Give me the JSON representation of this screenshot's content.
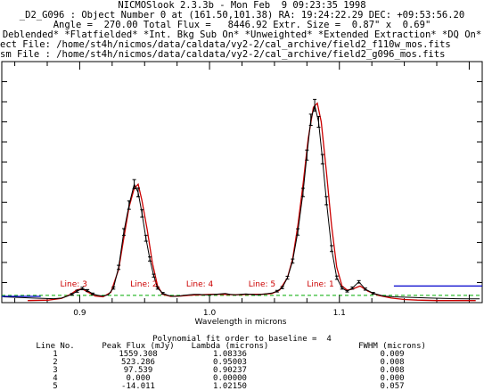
{
  "header": {
    "line1": "NICMOSlook 2.3.3b - Mon Feb  9 09:23:35 1998",
    "line2": "_D2_G096 : Object Number 0 at (161.50,101.38) RA: 19:24:22.29 DEC: +09:53:56.20",
    "line3": "Angle =  270.00 Total Flux =   8446.92 Extr. Size =  0.87\" x  0.69\"",
    "line4": "Deblended* *Flatfielded* *Int. Bkg Sub On* *Unweighted* *Extended Extraction* *DQ On*",
    "line5": "ect File: /home/st4h/nicmos/data/caldata/vy2-2/cal_archive/field2_f110w_mos.fits",
    "line6": "sm File : /home/st4h/nicmos/data/caldata/vy2-2/cal_archive/field2_g096_mos.fits"
  },
  "colors": {
    "spectrum": "#000000",
    "fit": "#cc0000",
    "baseline": "#00aa00",
    "marker": "#0000cc",
    "line_label": "#cc0000"
  },
  "chart_data": {
    "type": "line",
    "xlabel": "Wavelength in microns",
    "xlim": [
      0.84,
      1.21
    ],
    "ylim": [
      -10,
      1150
    ],
    "xticks": [
      0.9,
      1.0,
      1.1
    ],
    "xtick_labels": [
      "0.9",
      "1.0",
      "1.1"
    ],
    "series": [
      {
        "x": [
          0.841,
          0.848,
          0.856,
          0.864,
          0.872,
          0.88,
          0.886,
          0.89,
          0.894,
          0.898,
          0.902,
          0.906,
          0.91,
          0.914,
          0.918,
          0.922,
          0.926,
          0.93,
          0.934,
          0.938,
          0.942,
          0.945,
          0.948,
          0.951,
          0.954,
          0.957,
          0.96,
          0.964,
          0.968,
          0.972,
          0.976,
          0.98,
          0.984,
          0.988,
          0.992,
          0.996,
          1.0,
          1.004,
          1.008,
          1.012,
          1.016,
          1.02,
          1.024,
          1.028,
          1.032,
          1.036,
          1.04,
          1.044,
          1.048,
          1.052,
          1.056,
          1.06,
          1.064,
          1.068,
          1.072,
          1.075,
          1.078,
          1.081,
          1.084,
          1.087,
          1.09,
          1.094,
          1.098,
          1.102,
          1.106,
          1.11,
          1.115,
          1.12,
          1.126,
          1.134,
          1.142,
          1.15,
          1.16,
          1.17,
          1.18,
          1.19,
          1.2,
          1.208
        ],
        "y": [
          18,
          16,
          14,
          12,
          10,
          9,
          12,
          20,
          30,
          45,
          58,
          48,
          32,
          25,
          22,
          28,
          60,
          160,
          330,
          460,
          560,
          520,
          420,
          300,
          200,
          120,
          60,
          35,
          25,
          20,
          22,
          25,
          28,
          30,
          30,
          28,
          28,
          30,
          32,
          34,
          30,
          28,
          30,
          32,
          30,
          28,
          30,
          33,
          36,
          45,
          62,
          110,
          190,
          330,
          520,
          700,
          870,
          940,
          860,
          680,
          480,
          250,
          110,
          60,
          45,
          60,
          90,
          55,
          35,
          22,
          18,
          16,
          14,
          12,
          10,
          9,
          8,
          8
        ],
        "errors": [
          3,
          3,
          3,
          3,
          3,
          3,
          3,
          3,
          4,
          5,
          6,
          5,
          4,
          3,
          3,
          3,
          5,
          10,
          16,
          20,
          22,
          21,
          18,
          14,
          10,
          7,
          5,
          4,
          3,
          3,
          3,
          3,
          3,
          3,
          3,
          3,
          3,
          3,
          3,
          3,
          3,
          3,
          3,
          3,
          3,
          3,
          3,
          3,
          3,
          4,
          5,
          7,
          10,
          15,
          20,
          24,
          27,
          28,
          26,
          23,
          20,
          14,
          8,
          5,
          4,
          5,
          6,
          5,
          4,
          3,
          3,
          3,
          3,
          3,
          3,
          3,
          3,
          3
        ]
      },
      {
        "x": [
          0.86,
          0.876,
          0.886,
          0.893,
          0.898,
          0.902,
          0.906,
          0.912,
          0.918,
          0.924,
          0.93,
          0.934,
          0.938,
          0.942,
          0.945,
          0.948,
          0.952,
          0.956,
          0.96,
          0.964,
          0.97,
          0.978,
          0.986,
          0.994,
          1.002,
          1.01,
          1.02,
          1.03,
          1.04,
          1.048,
          1.054,
          1.06,
          1.064,
          1.068,
          1.072,
          1.076,
          1.08,
          1.083,
          1.086,
          1.09,
          1.094,
          1.098,
          1.102,
          1.106,
          1.11,
          1.116,
          1.122,
          1.13,
          1.14,
          1.15,
          1.16,
          1.175,
          1.19,
          1.205
        ],
        "y": [
          0,
          2,
          10,
          30,
          52,
          56,
          42,
          22,
          18,
          40,
          150,
          300,
          450,
          540,
          560,
          480,
          340,
          180,
          70,
          30,
          20,
          22,
          26,
          28,
          30,
          30,
          28,
          30,
          30,
          34,
          50,
          110,
          200,
          360,
          560,
          780,
          930,
          950,
          860,
          620,
          360,
          160,
          70,
          50,
          55,
          70,
          45,
          25,
          12,
          5,
          2,
          0,
          0,
          0
        ]
      },
      {
        "x": [
          0.84,
          1.21
        ],
        "y": [
          25,
          25
        ]
      },
      {
        "x": [
          0.84,
          0.87
        ],
        "y": [
          20,
          20
        ]
      },
      {
        "x": [
          1.142,
          1.21
        ],
        "y": [
          70,
          70
        ]
      }
    ],
    "annotations": [
      {
        "text": "Line:  3",
        "x": 0.885
      },
      {
        "text": "Line:  2",
        "x": 0.939
      },
      {
        "text": "Line:  4",
        "x": 0.982
      },
      {
        "text": "Line:  5",
        "x": 1.03
      },
      {
        "text": "Line:  1",
        "x": 1.075
      }
    ]
  },
  "results": {
    "title": "Polynomial fit order to baseline =  4",
    "headers": [
      "Line No.",
      "Peak Flux (mJy)",
      "Lambda (microns)",
      "FWHM (microns)"
    ],
    "rows": [
      [
        "1",
        "1559.308",
        "1.08336",
        "0.009"
      ],
      [
        "2",
        "523.286",
        "0.95003",
        "0.008"
      ],
      [
        "3",
        "97.539",
        "0.90237",
        "0.008"
      ],
      [
        "4",
        "0.000",
        "0.00000",
        "0.000"
      ],
      [
        "5",
        "-14.011",
        "1.02150",
        "0.057"
      ]
    ]
  }
}
